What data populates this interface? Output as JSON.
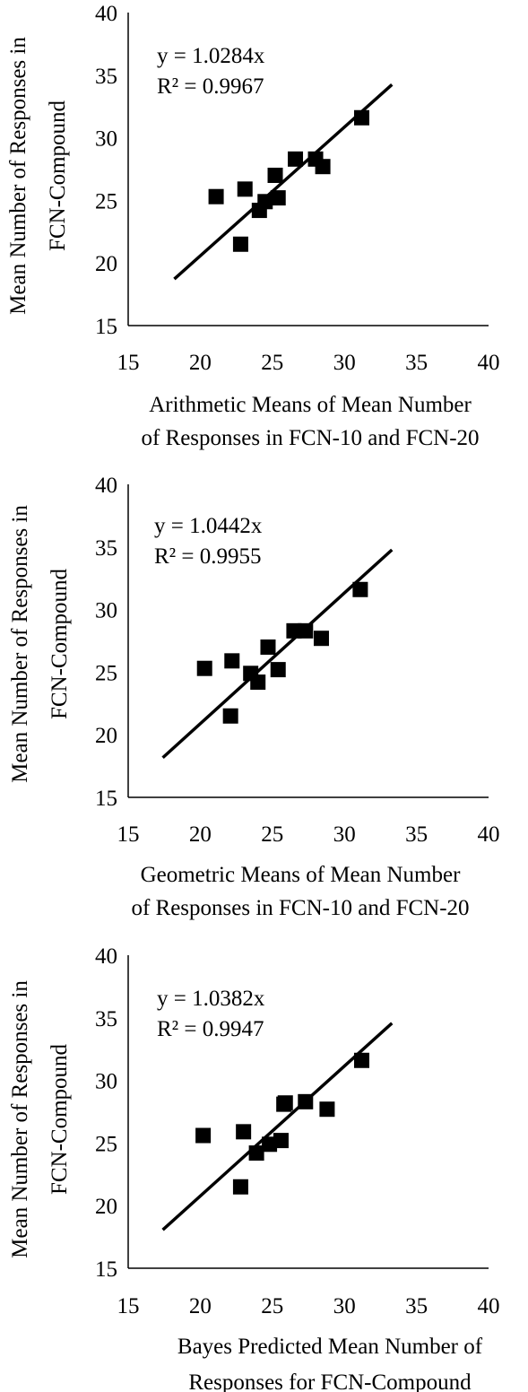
{
  "chart_data": [
    {
      "type": "scatter",
      "title": "",
      "xlabel": [
        "Arithmetic Means of  Mean Number",
        "of Responses in FCN-10 and FCN-20"
      ],
      "ylabel": [
        "Mean Number of Responses in",
        "FCN-Compound"
      ],
      "xlim": [
        15,
        40
      ],
      "ylim": [
        15,
        40
      ],
      "xticks": [
        "15",
        "20",
        "25",
        "30",
        "35",
        "40"
      ],
      "yticks": [
        "15",
        "20",
        "25",
        "30",
        "35",
        "40"
      ],
      "grid": false,
      "legend": "none",
      "marker_color": "#000000",
      "equation": "y = 1.0284x",
      "r_squared": "R² = 0.9967",
      "trendline": {
        "slope": 1.0284,
        "x_start": 18.2,
        "x_end": 33.3
      },
      "points": [
        {
          "x": 21.1,
          "y": 25.3
        },
        {
          "x": 22.8,
          "y": 21.5
        },
        {
          "x": 23.1,
          "y": 25.9
        },
        {
          "x": 24.1,
          "y": 24.2
        },
        {
          "x": 24.5,
          "y": 24.9
        },
        {
          "x": 25.2,
          "y": 27.0
        },
        {
          "x": 25.4,
          "y": 25.2
        },
        {
          "x": 26.6,
          "y": 28.3
        },
        {
          "x": 28.0,
          "y": 28.3
        },
        {
          "x": 28.5,
          "y": 27.7
        },
        {
          "x": 31.2,
          "y": 31.6
        }
      ]
    },
    {
      "type": "scatter",
      "title": "",
      "xlabel": [
        "Geometric Means of  Mean Number",
        "of Responses in FCN-10 and FCN-20"
      ],
      "ylabel": [
        "Mean Number of Responses in",
        "FCN-Compound"
      ],
      "xlim": [
        15,
        40
      ],
      "ylim": [
        15,
        40
      ],
      "xticks": [
        "15",
        "20",
        "25",
        "30",
        "35",
        "40"
      ],
      "yticks": [
        "15",
        "20",
        "25",
        "30",
        "35",
        "40"
      ],
      "grid": false,
      "legend": "none",
      "marker_color": "#000000",
      "equation": "y = 1.0442x",
      "r_squared": "R² = 0.9955",
      "trendline": {
        "slope": 1.0442,
        "x_start": 17.4,
        "x_end": 33.3
      },
      "points": [
        {
          "x": 20.3,
          "y": 25.3
        },
        {
          "x": 22.1,
          "y": 21.5
        },
        {
          "x": 22.2,
          "y": 25.9
        },
        {
          "x": 23.5,
          "y": 24.9
        },
        {
          "x": 24.0,
          "y": 24.2
        },
        {
          "x": 24.7,
          "y": 27.0
        },
        {
          "x": 25.4,
          "y": 25.2
        },
        {
          "x": 26.5,
          "y": 28.3
        },
        {
          "x": 27.3,
          "y": 28.3
        },
        {
          "x": 28.4,
          "y": 27.7
        },
        {
          "x": 31.1,
          "y": 31.6
        }
      ]
    },
    {
      "type": "scatter",
      "title": "",
      "xlabel": [
        "Bayes Predicted Mean Number of",
        "Responses for FCN-Compound"
      ],
      "ylabel": [
        "Mean Number of Responses in",
        "FCN-Compound"
      ],
      "xlim": [
        15,
        40
      ],
      "ylim": [
        15,
        40
      ],
      "xticks": [
        "15",
        "20",
        "25",
        "30",
        "35",
        "40"
      ],
      "yticks": [
        "15",
        "20",
        "25",
        "30",
        "35",
        "40"
      ],
      "grid": false,
      "legend": "none",
      "marker_color": "#000000",
      "equation": "y = 1.0382x",
      "r_squared": "R² = 0.9947",
      "trendline": {
        "slope": 1.0382,
        "x_start": 17.4,
        "x_end": 33.3
      },
      "points": [
        {
          "x": 20.2,
          "y": 25.6
        },
        {
          "x": 22.8,
          "y": 21.5
        },
        {
          "x": 23.0,
          "y": 25.9
        },
        {
          "x": 23.9,
          "y": 24.2
        },
        {
          "x": 24.8,
          "y": 24.9
        },
        {
          "x": 25.6,
          "y": 25.2
        },
        {
          "x": 25.8,
          "y": 28.1
        },
        {
          "x": 25.9,
          "y": 28.2
        },
        {
          "x": 27.3,
          "y": 28.3
        },
        {
          "x": 28.8,
          "y": 27.7
        },
        {
          "x": 31.2,
          "y": 31.6
        }
      ]
    }
  ]
}
